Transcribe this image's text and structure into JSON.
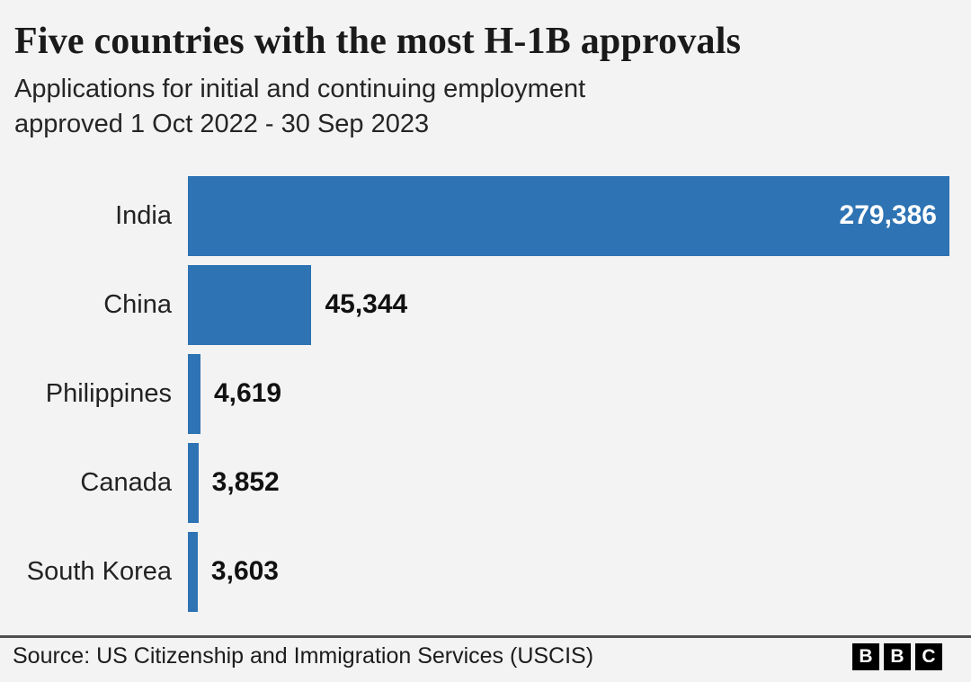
{
  "header": {
    "title": "Five countries with the most H-1B approvals",
    "subtitle_lines": [
      "Applications for initial and continuing employment",
      "approved 1 Oct 2022 - 30 Sep 2023"
    ]
  },
  "chart_data": {
    "type": "bar",
    "orientation": "horizontal",
    "title": "Five countries with the most H-1B approvals",
    "subtitle": "Applications for initial and continuing employment approved 1 Oct 2022 - 30 Sep 2023",
    "categories": [
      "India",
      "China",
      "Philippines",
      "Canada",
      "South Korea"
    ],
    "values": [
      279386,
      45344,
      4619,
      3852,
      3603
    ],
    "value_labels": [
      "279,386",
      "45,344",
      "4,619",
      "3,852",
      "3,603"
    ],
    "xlim": [
      0,
      279386
    ],
    "grid": false,
    "legend": false,
    "bar_color": "#2e73b3",
    "value_label_inside_threshold_pct": 30
  },
  "footer": {
    "source": "Source: US Citizenship and Immigration Services (USCIS)",
    "logo_letters": [
      "B",
      "B",
      "C"
    ]
  },
  "colors": {
    "background": "#f4f3f3",
    "bar": "#2e73b3",
    "title_text": "#1a1a1a",
    "body_text": "#222222",
    "value_inside_text": "#ffffff",
    "value_outside_text": "#111111",
    "divider": "#4f4f4f",
    "logo_bg": "#000000",
    "logo_fg": "#ffffff"
  }
}
